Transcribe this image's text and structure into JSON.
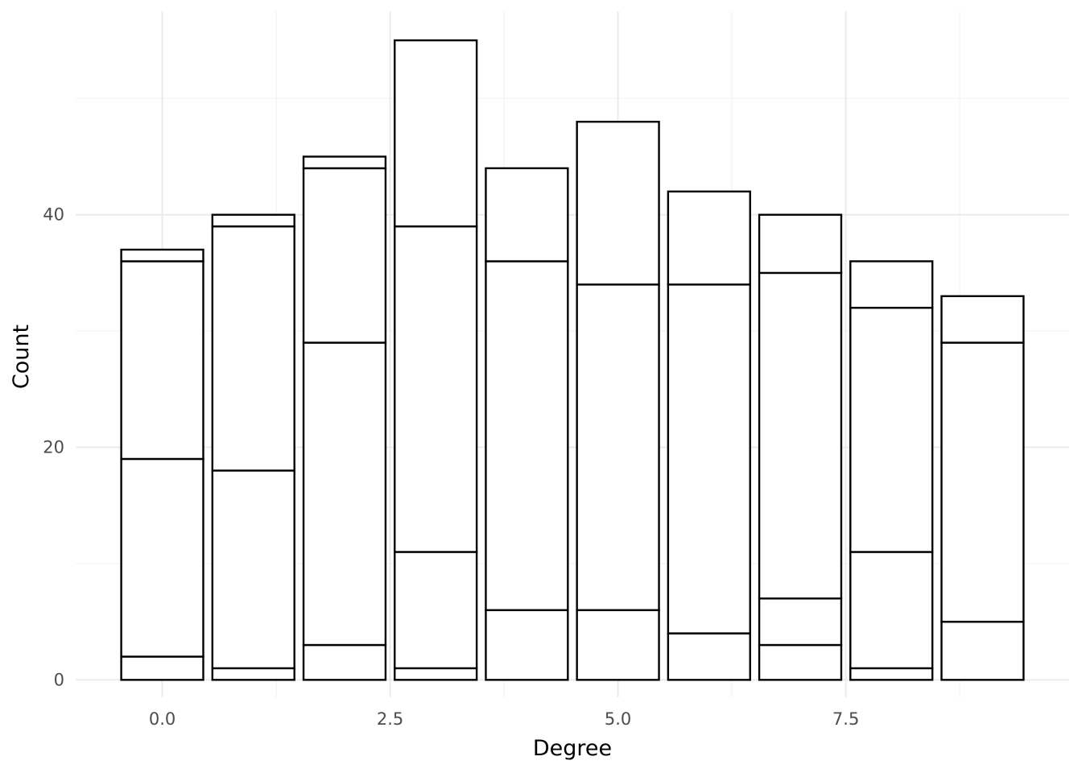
{
  "chart_data": {
    "type": "bar",
    "stacked": true,
    "xlabel": "Degree",
    "ylabel": "Count",
    "xlim": [
      -0.95,
      9.95
    ],
    "ylim": [
      -1.5,
      57.5
    ],
    "x_ticks": [
      0.0,
      2.5,
      5.0,
      7.5
    ],
    "x_tick_labels": [
      "0.0",
      "2.5",
      "5.0",
      "7.5"
    ],
    "y_ticks": [
      0,
      20,
      40
    ],
    "y_tick_labels": [
      "0",
      "20",
      "40"
    ],
    "grid": true,
    "legend": "none",
    "bar_width": 0.9,
    "bars": [
      {
        "x": 0,
        "boundaries": [
          0,
          2,
          19,
          36,
          37
        ]
      },
      {
        "x": 1,
        "boundaries": [
          0,
          1,
          18,
          39,
          40
        ]
      },
      {
        "x": 2,
        "boundaries": [
          0,
          3,
          29,
          44,
          45
        ]
      },
      {
        "x": 3,
        "boundaries": [
          0,
          1,
          11,
          39,
          55
        ]
      },
      {
        "x": 4,
        "boundaries": [
          0,
          6,
          36,
          44
        ]
      },
      {
        "x": 5,
        "boundaries": [
          0,
          6,
          34,
          48
        ]
      },
      {
        "x": 6,
        "boundaries": [
          0,
          4,
          34,
          42
        ]
      },
      {
        "x": 7,
        "boundaries": [
          0,
          3,
          7,
          35,
          40
        ]
      },
      {
        "x": 8,
        "boundaries": [
          0,
          1,
          11,
          32,
          36
        ]
      },
      {
        "x": 9,
        "boundaries": [
          0,
          5,
          29,
          33
        ]
      }
    ]
  }
}
